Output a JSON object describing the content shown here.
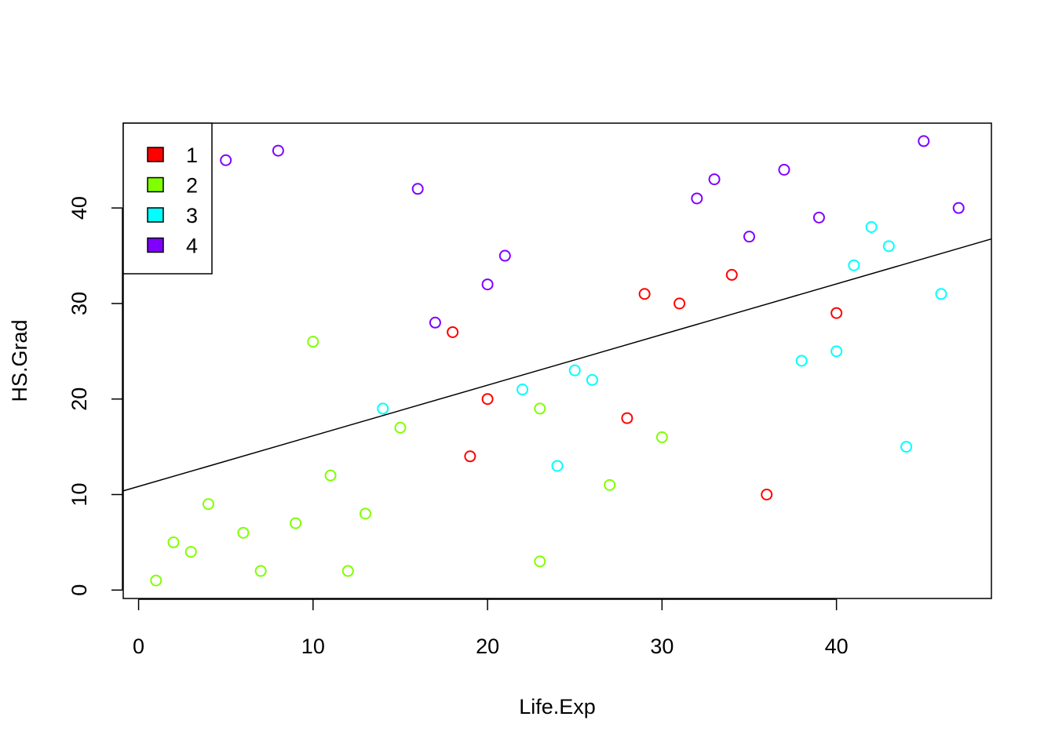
{
  "chart_data": {
    "type": "scatter",
    "title": "",
    "xlabel": "Life.Exp",
    "ylabel": "HS.Grad",
    "xlim": [
      -0.88,
      48.88
    ],
    "ylim": [
      -0.88,
      48.88
    ],
    "x_ticks": [
      0,
      10,
      20,
      30,
      40
    ],
    "y_ticks": [
      0,
      10,
      20,
      30,
      40
    ],
    "grid": false,
    "legend_position": "top-left",
    "regression_line": {
      "intercept": 10.85,
      "slope": 0.53,
      "color": "#000000"
    },
    "series": [
      {
        "name": "1",
        "color": "#FF0000",
        "points": [
          [
            18,
            27
          ],
          [
            19,
            14
          ],
          [
            20,
            20
          ],
          [
            28,
            18
          ],
          [
            29,
            31
          ],
          [
            31,
            30
          ],
          [
            34,
            33
          ],
          [
            36,
            10
          ],
          [
            40,
            29
          ]
        ]
      },
      {
        "name": "2",
        "color": "#80FF00",
        "points": [
          [
            1,
            1
          ],
          [
            2,
            5
          ],
          [
            3,
            4
          ],
          [
            4,
            9
          ],
          [
            6,
            6
          ],
          [
            7,
            2
          ],
          [
            9,
            7
          ],
          [
            10,
            26
          ],
          [
            11,
            12
          ],
          [
            12,
            2
          ],
          [
            13,
            8
          ],
          [
            15,
            17
          ],
          [
            23,
            19
          ],
          [
            23,
            3
          ],
          [
            27,
            11
          ],
          [
            30,
            16
          ]
        ]
      },
      {
        "name": "3",
        "color": "#00FFFF",
        "points": [
          [
            14,
            19
          ],
          [
            22,
            21
          ],
          [
            24,
            13
          ],
          [
            25,
            23
          ],
          [
            26,
            22
          ],
          [
            38,
            24
          ],
          [
            40,
            25
          ],
          [
            41,
            34
          ],
          [
            42,
            38
          ],
          [
            43,
            36
          ],
          [
            44,
            15
          ],
          [
            46,
            31
          ]
        ]
      },
      {
        "name": "4",
        "color": "#8000FF",
        "points": [
          [
            5,
            45
          ],
          [
            8,
            46
          ],
          [
            16,
            42
          ],
          [
            17,
            28
          ],
          [
            20,
            32
          ],
          [
            21,
            35
          ],
          [
            32,
            41
          ],
          [
            33,
            43
          ],
          [
            35,
            37
          ],
          [
            37,
            44
          ],
          [
            39,
            39
          ],
          [
            45,
            47
          ],
          [
            47,
            40
          ]
        ]
      }
    ]
  }
}
